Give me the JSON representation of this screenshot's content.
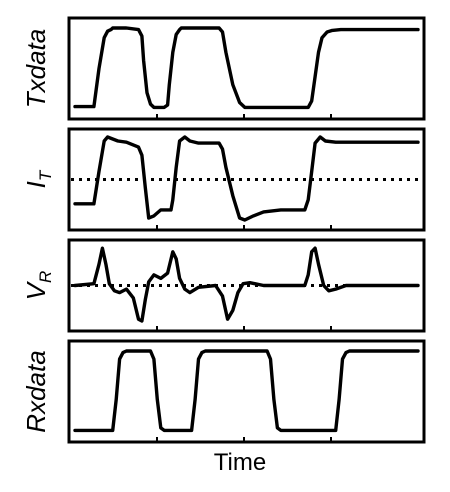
{
  "chart_data": [
    {
      "type": "line",
      "ylabel": "Txdata",
      "xlabel": "",
      "xlim": [
        0,
        10
      ],
      "ylim": [
        0,
        1
      ],
      "reference_line": null,
      "series": [
        {
          "x": [
            0,
            0.55,
            0.7,
            0.85,
            0.95,
            1.05,
            1.1,
            1.5,
            1.85,
            1.95,
            2.0,
            2.1,
            2.2,
            2.3,
            2.4,
            2.5,
            2.6,
            2.7,
            2.75,
            2.85,
            2.95,
            3.05,
            3.1,
            4.2,
            4.3,
            4.4,
            4.6,
            4.8,
            4.95,
            5.05,
            5.1,
            6.8,
            6.9,
            7.0,
            7.1,
            7.2,
            7.35,
            7.5,
            7.75,
            10
          ],
          "y": [
            0.03,
            0.03,
            0.5,
            0.88,
            0.96,
            0.98,
            1.0,
            1.0,
            0.98,
            0.9,
            0.6,
            0.2,
            0.06,
            0.02,
            0.02,
            0.02,
            0.02,
            0.05,
            0.3,
            0.7,
            0.92,
            0.98,
            1.0,
            1.0,
            0.95,
            0.7,
            0.3,
            0.08,
            0.02,
            0.02,
            0.02,
            0.02,
            0.1,
            0.4,
            0.7,
            0.88,
            0.95,
            0.97,
            0.98,
            0.98
          ]
        }
      ]
    },
    {
      "type": "line",
      "ylabel": "I",
      "ylabel_sub": "T",
      "xlabel": "",
      "xlim": [
        0,
        10
      ],
      "ylim": [
        -1,
        1
      ],
      "reference_line": 0,
      "series": [
        {
          "x": [
            0,
            0.55,
            0.7,
            0.85,
            0.95,
            1.1,
            1.25,
            1.5,
            1.85,
            1.95,
            2.05,
            2.15,
            2.3,
            2.5,
            2.8,
            2.85,
            2.95,
            3.05,
            3.2,
            3.35,
            3.6,
            4.2,
            4.3,
            4.4,
            4.6,
            4.8,
            4.95,
            5.2,
            5.5,
            6.0,
            6.7,
            6.8,
            6.9,
            7.0,
            7.15,
            7.3,
            7.6,
            10
          ],
          "y": [
            -0.6,
            -0.6,
            0.2,
            0.95,
            1.05,
            1.0,
            0.95,
            0.92,
            0.8,
            0.6,
            -0.2,
            -0.95,
            -0.9,
            -0.75,
            -0.75,
            -0.5,
            0.3,
            0.95,
            1.05,
            0.95,
            0.9,
            0.9,
            0.75,
            0.3,
            -0.4,
            -0.95,
            -1.0,
            -0.9,
            -0.8,
            -0.75,
            -0.75,
            -0.5,
            0.2,
            0.9,
            1.05,
            0.95,
            0.92,
            0.92
          ]
        }
      ]
    },
    {
      "type": "line",
      "ylabel": "V",
      "ylabel_sub": "R",
      "xlabel": "",
      "xlim": [
        0,
        10
      ],
      "ylim": [
        -1,
        1
      ],
      "reference_line": 0,
      "series": [
        {
          "x": [
            0,
            0.55,
            0.7,
            0.8,
            0.9,
            1.0,
            1.15,
            1.3,
            1.5,
            1.7,
            1.85,
            1.95,
            2.05,
            2.15,
            2.3,
            2.5,
            2.7,
            2.85,
            2.95,
            3.05,
            3.2,
            3.35,
            3.6,
            4.1,
            4.3,
            4.45,
            4.6,
            4.75,
            4.9,
            5.1,
            5.5,
            6.7,
            6.8,
            6.9,
            7.0,
            7.1,
            7.25,
            7.4,
            7.6,
            7.9,
            10
          ],
          "y": [
            0.0,
            0.05,
            0.6,
            1.05,
            0.6,
            0.05,
            -0.15,
            -0.2,
            -0.1,
            -0.35,
            -0.95,
            -1.0,
            -0.4,
            0.1,
            0.3,
            0.2,
            0.35,
            0.95,
            0.75,
            0.2,
            -0.1,
            -0.2,
            -0.05,
            0.0,
            -0.3,
            -0.95,
            -0.7,
            -0.2,
            0.05,
            0.08,
            0.0,
            0.0,
            0.3,
            0.95,
            1.05,
            0.6,
            0.0,
            -0.15,
            -0.1,
            0.0,
            0.0
          ]
        }
      ]
    },
    {
      "type": "line",
      "ylabel": "Rxdata",
      "xlabel": "Time",
      "xlim": [
        0,
        10
      ],
      "ylim": [
        0,
        1
      ],
      "reference_line": null,
      "series": [
        {
          "x": [
            0,
            1.1,
            1.2,
            1.3,
            1.4,
            1.5,
            2.2,
            2.3,
            2.4,
            2.5,
            2.6,
            3.4,
            3.5,
            3.6,
            3.7,
            3.8,
            5.6,
            5.7,
            5.8,
            5.9,
            6.0,
            7.6,
            7.7,
            7.8,
            7.9,
            8.0,
            10
          ],
          "y": [
            0.02,
            0.02,
            0.4,
            0.9,
            0.98,
            1.0,
            1.0,
            0.9,
            0.4,
            0.05,
            0.02,
            0.02,
            0.4,
            0.9,
            0.98,
            1.0,
            1.0,
            0.9,
            0.4,
            0.05,
            0.02,
            0.02,
            0.4,
            0.9,
            0.98,
            1.0,
            1.0
          ]
        }
      ]
    }
  ]
}
